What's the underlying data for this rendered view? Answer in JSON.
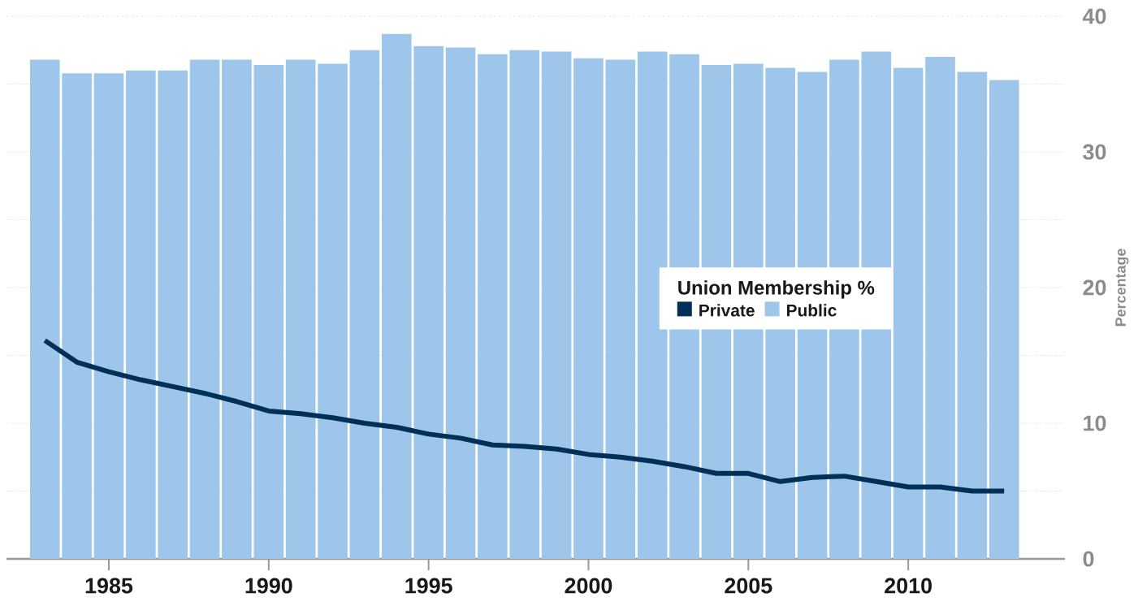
{
  "chart_data": {
    "type": "bar",
    "ylabel": "Percentage",
    "legend_title": "Union Membership %",
    "legend": "right",
    "grid": "y",
    "x": [
      1983,
      1984,
      1985,
      1986,
      1987,
      1988,
      1989,
      1990,
      1991,
      1992,
      1993,
      1994,
      1995,
      1996,
      1997,
      1998,
      1999,
      2000,
      2001,
      2002,
      2003,
      2004,
      2005,
      2006,
      2007,
      2008,
      2009,
      2010,
      2011,
      2012,
      2013
    ],
    "series": [
      {
        "name": "Private",
        "type": "line",
        "color": "#003057",
        "values": [
          16.1,
          14.5,
          13.8,
          13.2,
          12.7,
          12.2,
          11.6,
          10.9,
          10.7,
          10.4,
          10.0,
          9.7,
          9.2,
          8.9,
          8.4,
          8.3,
          8.1,
          7.7,
          7.5,
          7.2,
          6.8,
          6.3,
          6.3,
          5.7,
          6.0,
          6.1,
          5.7,
          5.3,
          5.3,
          5.0,
          5.0
        ]
      },
      {
        "name": "Public",
        "color": "#9dc6ea",
        "values": [
          36.8,
          35.8,
          35.8,
          36.0,
          36.0,
          36.8,
          36.8,
          36.4,
          36.8,
          36.5,
          37.5,
          38.7,
          37.8,
          37.7,
          37.2,
          37.5,
          37.4,
          36.9,
          36.8,
          37.4,
          37.2,
          36.4,
          36.5,
          36.2,
          35.9,
          36.8,
          37.4,
          36.2,
          37.0,
          35.9,
          35.3
        ]
      }
    ],
    "xlim": [
      1981.8,
      2014.9
    ],
    "xticks": [
      1985,
      1990,
      1995,
      2000,
      2005,
      2010
    ],
    "ylim": [
      0,
      40
    ],
    "yticks": [
      0,
      {
        "value": 5,
        "label": null
      },
      10,
      {
        "value": 15,
        "label": null
      },
      20,
      {
        "value": 25,
        "label": null
      },
      30,
      {
        "value": 35,
        "label": null
      },
      40
    ]
  }
}
